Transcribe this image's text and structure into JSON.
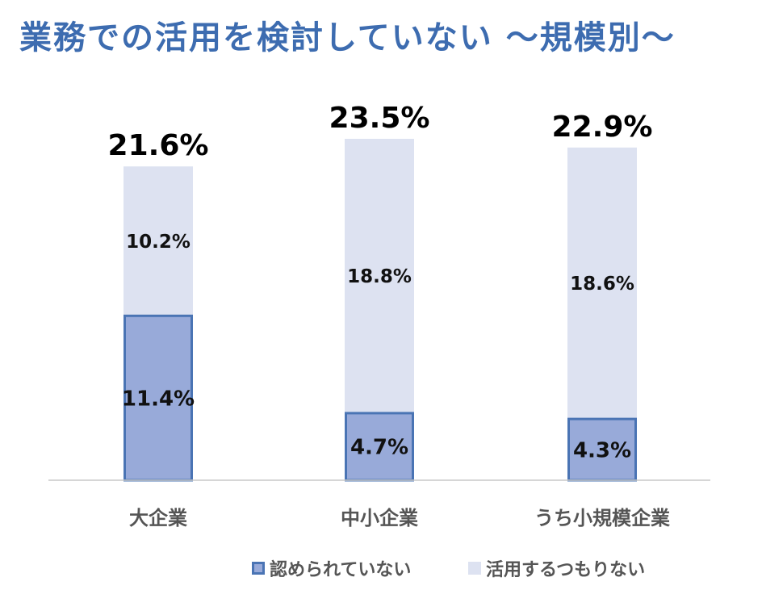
{
  "chart_data": {
    "type": "bar",
    "stacked": true,
    "title": "業務での活用を検討していない ～規模別～",
    "categories": [
      "大企業",
      "中小企業",
      "うち小規模企業"
    ],
    "totals": [
      "21.6%",
      "23.5%",
      "22.9%"
    ],
    "series": [
      {
        "name": "認められていない",
        "values": [
          11.4,
          4.7,
          4.3
        ],
        "labels": [
          "11.4%",
          "4.7%",
          "4.3%"
        ],
        "color": "#98aad9",
        "border": "#4a74b4"
      },
      {
        "name": "活用するつもりない",
        "values": [
          10.2,
          18.8,
          18.6
        ],
        "labels": [
          "10.2%",
          "18.8%",
          "18.6%"
        ],
        "color": "#dde2f1"
      }
    ],
    "ylim": [
      0,
      25
    ],
    "legend_position": "bottom"
  }
}
